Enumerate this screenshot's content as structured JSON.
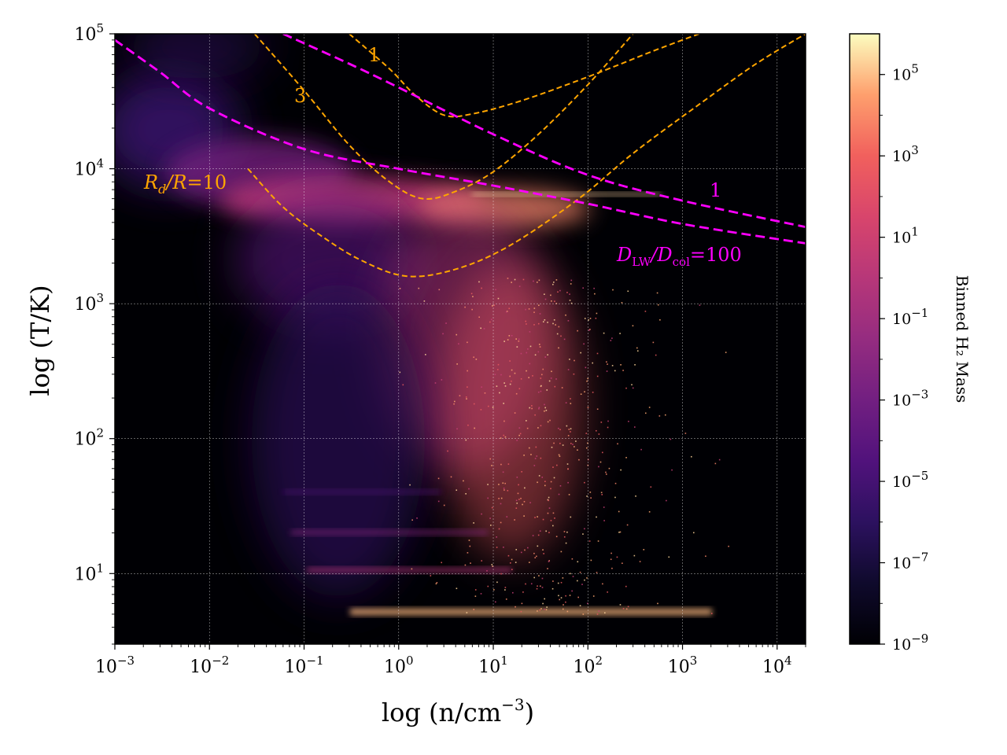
{
  "chart_data": {
    "type": "heatmap",
    "description_axes": {
      "xlabel": "log (n/cm⁻³)",
      "ylabel": "log (T/K)",
      "xscale": "log",
      "yscale": "log",
      "xlim": [
        0.001,
        20000
      ],
      "ylim": [
        3,
        100000
      ],
      "grid": true
    },
    "x_ticks": [
      {
        "value": 0.001,
        "base": "10",
        "exp": "−3"
      },
      {
        "value": 0.01,
        "base": "10",
        "exp": "−2"
      },
      {
        "value": 0.1,
        "base": "10",
        "exp": "−1"
      },
      {
        "value": 1,
        "base": "10",
        "exp": "0"
      },
      {
        "value": 10,
        "base": "10",
        "exp": "1"
      },
      {
        "value": 100,
        "base": "10",
        "exp": "2"
      },
      {
        "value": 1000,
        "base": "10",
        "exp": "3"
      },
      {
        "value": 10000,
        "base": "10",
        "exp": "4"
      }
    ],
    "y_ticks": [
      {
        "value": 10,
        "base": "10",
        "exp": "1"
      },
      {
        "value": 100,
        "base": "10",
        "exp": "2"
      },
      {
        "value": 1000,
        "base": "10",
        "exp": "3"
      },
      {
        "value": 10000,
        "base": "10",
        "exp": "4"
      },
      {
        "value": 100000,
        "base": "10",
        "exp": "5"
      }
    ],
    "colorbar": {
      "label": "Binned H₂ Mass",
      "scale": "log",
      "range": [
        1e-09,
        1000000
      ],
      "ticks": [
        {
          "value": 1e-09,
          "base": "10",
          "exp": "−9"
        },
        {
          "value": 1e-07,
          "base": "10",
          "exp": "−7"
        },
        {
          "value": 1e-05,
          "base": "10",
          "exp": "−5"
        },
        {
          "value": 0.001,
          "base": "10",
          "exp": "−3"
        },
        {
          "value": 0.1,
          "base": "10",
          "exp": "−1"
        },
        {
          "value": 10,
          "base": "10",
          "exp": "1"
        },
        {
          "value": 1000,
          "base": "10",
          "exp": "3"
        },
        {
          "value": 100000,
          "base": "10",
          "exp": "5"
        }
      ],
      "colormap": "magma"
    },
    "contours": [
      {
        "name": "Rd/R = 10",
        "color": "#ffa500",
        "style": "dashed",
        "label": "Rd/R =10",
        "points": [
          [
            0.0255,
            10000
          ],
          [
            0.06,
            5200
          ],
          [
            0.15,
            3200
          ],
          [
            0.4,
            2100
          ],
          [
            1.2,
            1600
          ],
          [
            4,
            1800
          ],
          [
            15,
            2700
          ],
          [
            80,
            6000
          ],
          [
            300,
            13000
          ],
          [
            1500,
            30000
          ],
          [
            6000,
            60000
          ],
          [
            20000,
            100000
          ]
        ]
      },
      {
        "name": "Rd/R = 3",
        "color": "#ffa500",
        "style": "dashed",
        "label": "3",
        "points": [
          [
            0.03,
            100000
          ],
          [
            0.1,
            38000
          ],
          [
            0.3,
            15000
          ],
          [
            0.8,
            8000
          ],
          [
            1.8,
            6000
          ],
          [
            4,
            6800
          ],
          [
            10,
            9500
          ],
          [
            30,
            18000
          ],
          [
            100,
            42000
          ],
          [
            300,
            100000
          ]
        ]
      },
      {
        "name": "Rd/R = 1",
        "color": "#ffa500",
        "style": "dashed",
        "label": "1",
        "points": [
          [
            0.3,
            100000
          ],
          [
            0.8,
            55000
          ],
          [
            1.5,
            35000
          ],
          [
            3,
            25000
          ],
          [
            6,
            25500
          ],
          [
            20,
            32000
          ],
          [
            100,
            48000
          ],
          [
            500,
            75000
          ],
          [
            1500,
            100000
          ]
        ]
      },
      {
        "name": "DLW/Dcol = 1",
        "color": "#ff00ff",
        "style": "dashed",
        "label": "1",
        "points": [
          [
            0.06,
            100000
          ],
          [
            0.3,
            60000
          ],
          [
            1,
            40000
          ],
          [
            10,
            18000
          ],
          [
            100,
            9000
          ],
          [
            1000,
            5800
          ],
          [
            20000,
            3700
          ]
        ]
      },
      {
        "name": "DLW/Dcol = 100",
        "color": "#ff00ff",
        "style": "dashed",
        "label": "DLW/Dcol=100",
        "points": [
          [
            0.001,
            90000
          ],
          [
            0.003,
            52000
          ],
          [
            0.01,
            28000
          ],
          [
            0.1,
            14000
          ],
          [
            1,
            10000
          ],
          [
            10,
            7500
          ],
          [
            100,
            5500
          ],
          [
            1000,
            3900
          ],
          [
            20000,
            2800
          ]
        ]
      }
    ],
    "labels": {
      "rd_label_main": "R",
      "rd_label_sub": "d",
      "rd_label_mid": "/R",
      "rd_label_end": "=10",
      "rd3": "3",
      "rd1": "1",
      "dlw1": "1",
      "dlw_main": "D",
      "dlw_sub1": "LW",
      "dlw_mid": "/D",
      "dlw_sub2": "col",
      "dlw_end": "=100"
    },
    "ylabel_text": "log (T/K)",
    "xlabel_text": "log (n/cm",
    "xlabel_exp": "−3",
    "xlabel_close": ")",
    "colors": {
      "background": "#000004",
      "orange": "#ffa500",
      "magenta": "#ff00ff"
    }
  }
}
